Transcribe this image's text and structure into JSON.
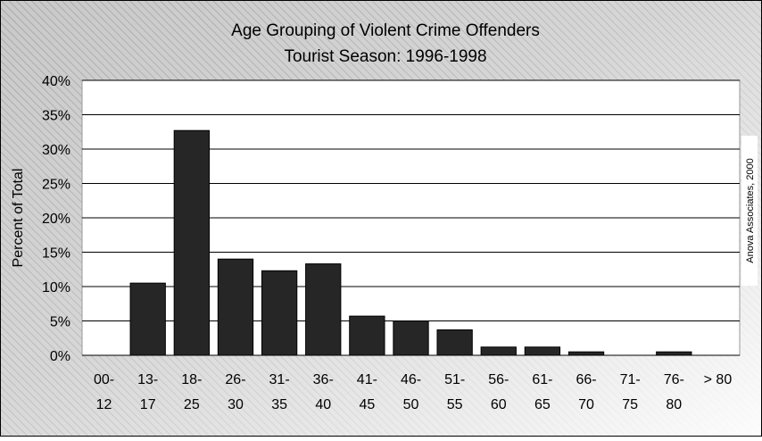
{
  "chart_data": {
    "type": "bar",
    "title": "Age Grouping of Violent Crime Offenders",
    "subtitle": "Tourist Season: 1996-1998",
    "xlabel": "",
    "ylabel": "Percent of Total",
    "ylim": [
      0,
      40
    ],
    "yticks": [
      "0%",
      "5%",
      "10%",
      "15%",
      "20%",
      "25%",
      "30%",
      "35%",
      "40%"
    ],
    "grid": true,
    "legend": "none",
    "categories": [
      {
        "line1": "00-",
        "line2": "12"
      },
      {
        "line1": "13-",
        "line2": "17"
      },
      {
        "line1": "18-",
        "line2": "25"
      },
      {
        "line1": "26-",
        "line2": "30"
      },
      {
        "line1": "31-",
        "line2": "35"
      },
      {
        "line1": "36-",
        "line2": "40"
      },
      {
        "line1": "41-",
        "line2": "45"
      },
      {
        "line1": "46-",
        "line2": "50"
      },
      {
        "line1": "51-",
        "line2": "55"
      },
      {
        "line1": "56-",
        "line2": "60"
      },
      {
        "line1": "61-",
        "line2": "65"
      },
      {
        "line1": "66-",
        "line2": "70"
      },
      {
        "line1": "71-",
        "line2": "75"
      },
      {
        "line1": "76-",
        "line2": "80"
      },
      {
        "line1": "> 80",
        "line2": ""
      }
    ],
    "values": [
      0,
      10.5,
      32.7,
      14.0,
      12.3,
      13.3,
      5.7,
      5.0,
      3.7,
      1.2,
      1.2,
      0.5,
      0,
      0.5,
      0
    ],
    "bar_color": "#262626",
    "watermark": "Anova Associates, 2000"
  }
}
